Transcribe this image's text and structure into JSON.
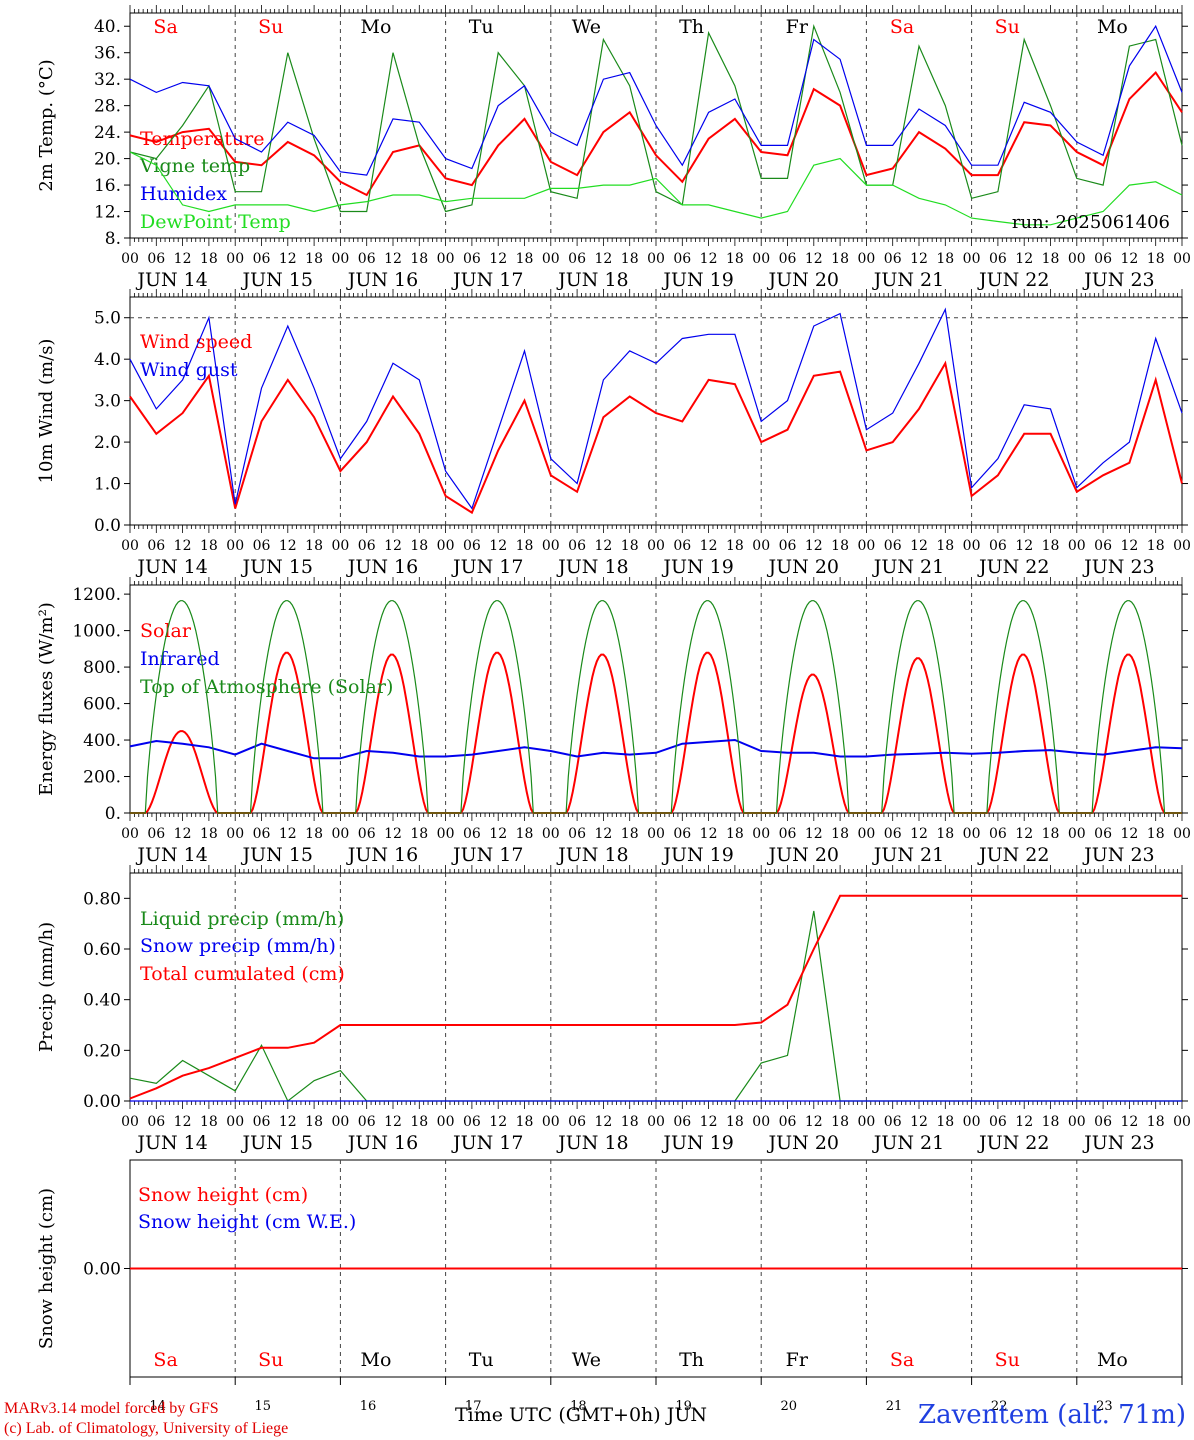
{
  "colors": {
    "red": "#ff0000",
    "green": "#1a8a1a",
    "blue": "#0000ee",
    "lightgreen": "#22dd22",
    "grid": "#444444"
  },
  "run_label": "run: 2025061406",
  "credit_line1": "MARv3.14 model forced by GFS",
  "credit_line2": "(c) Lab. of Climatology, University of Liege",
  "footer_xlabel": "Time UTC (GMT+0h) JUN",
  "station": "Zaventem (alt. 71m)",
  "days": [
    {
      "dow": "Sa",
      "date": "JUN 14",
      "num": "14",
      "weekend": true
    },
    {
      "dow": "Su",
      "date": "JUN 15",
      "num": "15",
      "weekend": true
    },
    {
      "dow": "Mo",
      "date": "JUN 16",
      "num": "16",
      "weekend": false
    },
    {
      "dow": "Tu",
      "date": "JUN 17",
      "num": "17",
      "weekend": false
    },
    {
      "dow": "We",
      "date": "JUN 18",
      "num": "18",
      "weekend": false
    },
    {
      "dow": "Th",
      "date": "JUN 19",
      "num": "19",
      "weekend": false
    },
    {
      "dow": "Fr",
      "date": "JUN 20",
      "num": "20",
      "weekend": false
    },
    {
      "dow": "Sa",
      "date": "JUN 21",
      "num": "21",
      "weekend": true
    },
    {
      "dow": "Su",
      "date": "JUN 22",
      "num": "22",
      "weekend": true
    },
    {
      "dow": "Mo",
      "date": "JUN 23",
      "num": "23",
      "weekend": false
    }
  ],
  "hour_ticks": [
    "00",
    "06",
    "12",
    "18"
  ],
  "chart_data": [
    {
      "type": "line",
      "ylabel": "2m Temp. (°C)",
      "ylim": [
        8,
        42
      ],
      "yticks": [
        "8.",
        "12.",
        "16.",
        "20.",
        "24.",
        "28.",
        "32.",
        "36.",
        "40."
      ],
      "ytick_values": [
        8,
        12,
        16,
        20,
        24,
        28,
        32,
        36,
        40
      ],
      "x_hours": [
        0,
        6,
        12,
        18,
        24,
        30,
        36,
        42,
        48,
        54,
        60,
        66,
        72,
        78,
        84,
        90,
        96,
        102,
        108,
        114,
        120,
        126,
        132,
        138,
        144,
        150,
        156,
        162,
        168,
        174,
        180,
        186,
        192,
        198,
        204,
        210,
        216,
        222,
        228,
        234,
        240
      ],
      "series": [
        {
          "name": "Temperature",
          "color": "red",
          "values": [
            23.5,
            22.5,
            24,
            24.5,
            19.5,
            19,
            22.5,
            20.5,
            16.5,
            14.5,
            21,
            22,
            17,
            16,
            22,
            26,
            19.5,
            17.5,
            24,
            27,
            20.5,
            16.5,
            23,
            26,
            21,
            20.5,
            30.5,
            28,
            17.5,
            18.5,
            24,
            21.5,
            17.5,
            17.5,
            25.5,
            25,
            21,
            19,
            29,
            33,
            27
          ]
        },
        {
          "name": "Vigne temp",
          "color": "green",
          "values": [
            21,
            20,
            25,
            31,
            15,
            15,
            36,
            23,
            12,
            12,
            36,
            22,
            12,
            13,
            36,
            31,
            15,
            14,
            38,
            31,
            15,
            13,
            39,
            31,
            17,
            17,
            40,
            30,
            16,
            16,
            37,
            28,
            14,
            15,
            38,
            28,
            17,
            16,
            37,
            38,
            22
          ]
        },
        {
          "name": "Humidex",
          "color": "blue",
          "values": [
            32,
            30,
            31.5,
            31,
            23,
            21,
            25.5,
            23.5,
            18,
            17.5,
            26,
            25.5,
            20,
            18.5,
            28,
            31,
            24,
            22,
            32,
            33,
            25,
            19,
            27,
            29,
            22,
            22,
            38,
            35,
            22,
            22,
            27.5,
            25,
            19,
            19,
            28.5,
            27,
            22.5,
            20.5,
            34,
            40,
            30
          ]
        },
        {
          "name": "DewPoint Temp",
          "color": "lightgreen",
          "values": [
            21,
            19,
            13,
            12,
            13,
            13,
            13,
            12,
            13,
            13.5,
            14.5,
            14.5,
            13.5,
            14,
            14,
            14,
            15.5,
            15.5,
            16,
            16,
            17,
            13,
            13,
            12,
            11,
            12,
            19,
            20,
            16,
            16,
            14,
            13,
            11,
            10.5,
            10,
            10,
            11,
            12,
            16,
            16.5,
            14.5
          ]
        }
      ]
    },
    {
      "type": "line",
      "ylabel": "10m Wind (m/s)",
      "ylim": [
        0,
        5.5
      ],
      "yticks": [
        "0.0",
        "1.0",
        "2.0",
        "3.0",
        "4.0",
        "5.0"
      ],
      "ytick_values": [
        0,
        1,
        2,
        3,
        4,
        5
      ],
      "x_hours": [
        0,
        6,
        12,
        18,
        24,
        30,
        36,
        42,
        48,
        54,
        60,
        66,
        72,
        78,
        84,
        90,
        96,
        102,
        108,
        114,
        120,
        126,
        132,
        138,
        144,
        150,
        156,
        162,
        168,
        174,
        180,
        186,
        192,
        198,
        204,
        210,
        216,
        222,
        228,
        234,
        240
      ],
      "series": [
        {
          "name": "Wind speed",
          "color": "red",
          "values": [
            3.1,
            2.2,
            2.7,
            3.6,
            0.4,
            2.5,
            3.5,
            2.6,
            1.3,
            2.0,
            3.1,
            2.2,
            0.7,
            0.3,
            1.8,
            3.0,
            1.2,
            0.8,
            2.6,
            3.1,
            2.7,
            2.5,
            3.5,
            3.4,
            2.0,
            2.3,
            3.6,
            3.7,
            1.8,
            2.0,
            2.8,
            3.9,
            0.7,
            1.2,
            2.2,
            2.2,
            0.8,
            1.2,
            1.5,
            3.5,
            1.0
          ]
        },
        {
          "name": "Wind gust",
          "color": "blue",
          "values": [
            4.0,
            2.8,
            3.5,
            5.0,
            0.5,
            3.3,
            4.8,
            3.3,
            1.6,
            2.5,
            3.9,
            3.5,
            1.3,
            0.4,
            2.3,
            4.2,
            1.6,
            1.0,
            3.5,
            4.2,
            3.9,
            4.5,
            4.6,
            4.6,
            2.5,
            3.0,
            4.8,
            5.1,
            2.3,
            2.7,
            3.9,
            5.2,
            0.9,
            1.6,
            2.9,
            2.8,
            0.9,
            1.5,
            2.0,
            4.5,
            2.7
          ]
        }
      ]
    },
    {
      "type": "line",
      "ylabel": "Energy fluxes (W/m²)",
      "ylim": [
        0,
        1250
      ],
      "yticks": [
        "0.",
        "200.",
        "400.",
        "600.",
        "800.",
        "1000.",
        "1200."
      ],
      "ytick_values": [
        0,
        200,
        400,
        600,
        800,
        1000,
        1200
      ],
      "series": [
        {
          "name": "Solar",
          "color": "red",
          "daily_peaks": [
            450,
            880,
            870,
            880,
            870,
            880,
            760,
            850,
            870,
            870
          ]
        },
        {
          "name": "Infrared",
          "color": "blue",
          "values": [
            365,
            395,
            380,
            360,
            320,
            380,
            340,
            300,
            300,
            340,
            330,
            310,
            310,
            320,
            340,
            360,
            340,
            310,
            330,
            320,
            330,
            380,
            390,
            400,
            340,
            330,
            330,
            310,
            310,
            320,
            325,
            330,
            325,
            330,
            340,
            345,
            330,
            320,
            340,
            360,
            355
          ]
        },
        {
          "name": "Top of Atmosphere (Solar)",
          "color": "green",
          "daily_peaks": [
            1165,
            1165,
            1165,
            1165,
            1165,
            1165,
            1165,
            1165,
            1165,
            1165
          ]
        }
      ]
    },
    {
      "type": "line",
      "ylabel": "Precip (mm/h)",
      "ylim": [
        0,
        0.9
      ],
      "yticks": [
        "0.00",
        "0.20",
        "0.40",
        "0.60",
        "0.80"
      ],
      "ytick_values": [
        0,
        0.2,
        0.4,
        0.6,
        0.8
      ],
      "x_hours": [
        0,
        6,
        12,
        18,
        24,
        30,
        36,
        42,
        48,
        54,
        60,
        66,
        72,
        78,
        84,
        90,
        96,
        102,
        108,
        114,
        120,
        126,
        132,
        138,
        144,
        150,
        156,
        162,
        168,
        174,
        180,
        186,
        192,
        198,
        204,
        210,
        216,
        222,
        228,
        234,
        240
      ],
      "series": [
        {
          "name": "Liquid precip (mm/h)",
          "color": "green",
          "values": [
            0.09,
            0.07,
            0.16,
            0.1,
            0.04,
            0.22,
            0.0,
            0.08,
            0.12,
            0.0,
            0.0,
            0.0,
            0.0,
            0.0,
            0.0,
            0.0,
            0.0,
            0.0,
            0.0,
            0.0,
            0.0,
            0.0,
            0.0,
            0.0,
            0.15,
            0.18,
            0.75,
            0.0,
            0.0,
            0.0,
            0.0,
            0.0,
            0.0,
            0.0,
            0.0,
            0.0,
            0.0,
            0.0,
            0.0,
            0.0,
            0.0
          ]
        },
        {
          "name": "Snow precip (mm/h)",
          "color": "blue",
          "values": [
            0,
            0,
            0,
            0,
            0,
            0,
            0,
            0,
            0,
            0,
            0,
            0,
            0,
            0,
            0,
            0,
            0,
            0,
            0,
            0,
            0,
            0,
            0,
            0,
            0,
            0,
            0,
            0,
            0,
            0,
            0,
            0,
            0,
            0,
            0,
            0,
            0,
            0,
            0,
            0,
            0
          ]
        },
        {
          "name": "Total cumulated (cm)",
          "color": "red",
          "values": [
            0.01,
            0.05,
            0.1,
            0.13,
            0.17,
            0.21,
            0.21,
            0.23,
            0.3,
            0.3,
            0.3,
            0.3,
            0.3,
            0.3,
            0.3,
            0.3,
            0.3,
            0.3,
            0.3,
            0.3,
            0.3,
            0.3,
            0.3,
            0.3,
            0.31,
            0.38,
            0.6,
            0.81,
            0.81,
            0.81,
            0.81,
            0.81,
            0.81,
            0.81,
            0.81,
            0.81,
            0.81,
            0.81,
            0.81,
            0.81,
            0.81
          ]
        }
      ]
    },
    {
      "type": "line",
      "ylabel": "Snow height (cm)",
      "ylim": [
        -1,
        1
      ],
      "yticks": [
        "0.00"
      ],
      "ytick_values": [
        0
      ],
      "series": [
        {
          "name": "Snow height (cm)",
          "color": "red",
          "values": [
            0,
            0
          ]
        },
        {
          "name": "Snow height (cm W.E.)",
          "color": "blue",
          "values": []
        }
      ]
    }
  ]
}
